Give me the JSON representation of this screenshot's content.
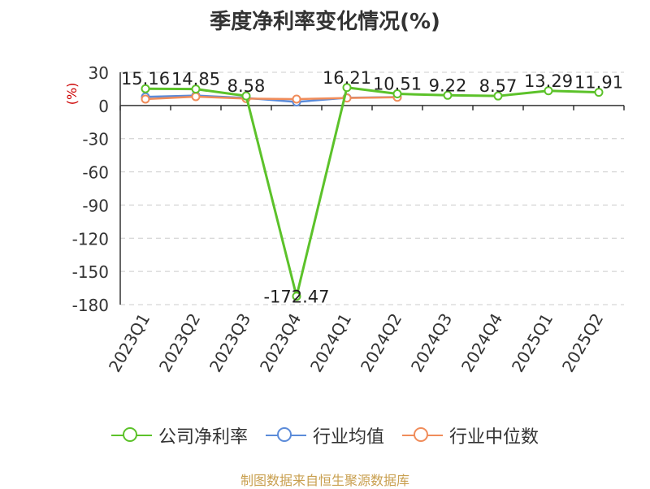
{
  "title": "季度净利率变化情况(%)",
  "source": "制图数据来自恒生聚源数据库",
  "chart_data": {
    "type": "line",
    "title": "季度净利率变化情况(%)",
    "ylabel": "(%)",
    "xlabel": "",
    "ylim": [
      -180,
      30
    ],
    "yticks": [
      30,
      0,
      -30,
      -60,
      -90,
      -120,
      -150,
      -180
    ],
    "grid": true,
    "legend_position": "bottom",
    "categories": [
      "2023Q1",
      "2023Q2",
      "2023Q3",
      "2023Q4",
      "2024Q1",
      "2024Q2",
      "2024Q3",
      "2024Q4",
      "2025Q1",
      "2025Q2"
    ],
    "series": [
      {
        "name": "公司净利率",
        "color": "#5cc22a",
        "values": [
          15.16,
          14.85,
          8.58,
          -172.47,
          16.21,
          10.51,
          9.22,
          8.57,
          13.29,
          11.91
        ],
        "labels": [
          "15.16",
          "14.85",
          "8.58",
          "-172.47",
          "16.21",
          "10.51",
          "9.22",
          "8.57",
          "13.29",
          "11.91"
        ]
      },
      {
        "name": "行业均值",
        "color": "#5b8bd9",
        "values": [
          7.8,
          9.0,
          6.8,
          3.2,
          7.0,
          7.6,
          null,
          null,
          null,
          null
        ]
      },
      {
        "name": "行业中位数",
        "color": "#f08c5a",
        "values": [
          5.8,
          8.0,
          6.2,
          5.8,
          6.8,
          7.4,
          null,
          null,
          null,
          null
        ]
      }
    ]
  }
}
